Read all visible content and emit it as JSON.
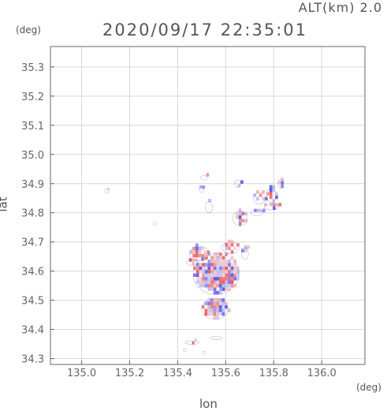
{
  "header": {
    "altitude": "ALT(km) 2.0",
    "timestamp": "2020/09/17 22:35:01"
  },
  "chart_data": {
    "type": "heatmap",
    "title": "2020/09/17 22:35:01",
    "xlabel": "lon",
    "ylabel": "lat",
    "x_unit": "(deg)",
    "y_unit": "(deg)",
    "xlim": [
      134.87,
      136.18
    ],
    "ylim": [
      34.28,
      35.37
    ],
    "x_ticks": [
      135.0,
      135.2,
      135.4,
      135.6,
      135.8,
      136.0
    ],
    "x_tick_labels": [
      "135.0",
      "135.2",
      "135.4",
      "135.6",
      "135.8",
      "136.0"
    ],
    "y_ticks": [
      34.3,
      34.4,
      34.5,
      34.6,
      34.7,
      34.8,
      34.9,
      35.0,
      35.1,
      35.2,
      35.3
    ],
    "y_tick_labels": [
      "34.3",
      "34.4",
      "34.5",
      "34.6",
      "34.7",
      "34.8",
      "34.9",
      "35.0",
      "35.1",
      "35.2",
      "35.3"
    ],
    "grid": true,
    "colors": {
      "positive": "#e85a5a",
      "negative": "#5a5ae8",
      "weak_positive": "#f4b4b4",
      "weak_negative": "#b4b8f4",
      "outline": "#3a3aa8"
    },
    "echo_regions": [
      {
        "lon": 135.56,
        "lat": 34.59,
        "dlon": 0.19,
        "dlat": 0.14,
        "density": 1.0,
        "cell": 0.012
      },
      {
        "lon": 135.555,
        "lat": 34.47,
        "dlon": 0.11,
        "dlat": 0.07,
        "density": 0.95,
        "cell": 0.012
      },
      {
        "lon": 135.49,
        "lat": 34.66,
        "dlon": 0.08,
        "dlat": 0.05,
        "density": 0.9,
        "cell": 0.012
      },
      {
        "lon": 135.46,
        "lat": 34.63,
        "dlon": 0.05,
        "dlat": 0.02,
        "density": 0.6,
        "cell": 0.012
      },
      {
        "lon": 135.62,
        "lat": 34.68,
        "dlon": 0.07,
        "dlat": 0.04,
        "density": 0.8,
        "cell": 0.012
      },
      {
        "lon": 135.68,
        "lat": 34.66,
        "dlon": 0.03,
        "dlat": 0.04,
        "density": 0.5,
        "cell": 0.012
      },
      {
        "lon": 135.66,
        "lat": 34.78,
        "dlon": 0.06,
        "dlat": 0.05,
        "density": 0.7,
        "cell": 0.012
      },
      {
        "lon": 135.74,
        "lat": 34.85,
        "dlon": 0.05,
        "dlat": 0.04,
        "density": 0.55,
        "cell": 0.012
      },
      {
        "lon": 135.79,
        "lat": 34.86,
        "dlon": 0.04,
        "dlat": 0.05,
        "density": 0.85,
        "cell": 0.012
      },
      {
        "lon": 135.83,
        "lat": 34.9,
        "dlon": 0.025,
        "dlat": 0.03,
        "density": 0.9,
        "cell": 0.012
      },
      {
        "lon": 135.79,
        "lat": 34.82,
        "dlon": 0.06,
        "dlat": 0.02,
        "density": 0.6,
        "cell": 0.012
      },
      {
        "lon": 135.73,
        "lat": 34.8,
        "dlon": 0.05,
        "dlat": 0.02,
        "density": 0.4,
        "cell": 0.012
      },
      {
        "lon": 135.65,
        "lat": 34.9,
        "dlon": 0.025,
        "dlat": 0.025,
        "density": 0.5,
        "cell": 0.012
      },
      {
        "lon": 135.51,
        "lat": 34.92,
        "dlon": 0.03,
        "dlat": 0.015,
        "density": 0.5,
        "cell": 0.012
      },
      {
        "lon": 135.53,
        "lat": 34.82,
        "dlon": 0.03,
        "dlat": 0.04,
        "density": 0.45,
        "cell": 0.012
      },
      {
        "lon": 135.5,
        "lat": 34.88,
        "dlon": 0.02,
        "dlat": 0.02,
        "density": 0.4,
        "cell": 0.012
      },
      {
        "lon": 135.105,
        "lat": 34.875,
        "dlon": 0.018,
        "dlat": 0.015,
        "density": 0.9,
        "cell": 0.01
      },
      {
        "lon": 135.305,
        "lat": 34.762,
        "dlon": 0.012,
        "dlat": 0.008,
        "density": 0.8,
        "cell": 0.008
      },
      {
        "lon": 135.46,
        "lat": 34.355,
        "dlon": 0.06,
        "dlat": 0.012,
        "density": 0.5,
        "cell": 0.01
      },
      {
        "lon": 135.56,
        "lat": 34.37,
        "dlon": 0.05,
        "dlat": 0.01,
        "density": 0.35,
        "cell": 0.01
      },
      {
        "lon": 135.43,
        "lat": 34.33,
        "dlon": 0.01,
        "dlat": 0.008,
        "density": 0.6,
        "cell": 0.008
      },
      {
        "lon": 135.51,
        "lat": 34.32,
        "dlon": 0.008,
        "dlat": 0.008,
        "density": 0.6,
        "cell": 0.008
      }
    ]
  }
}
